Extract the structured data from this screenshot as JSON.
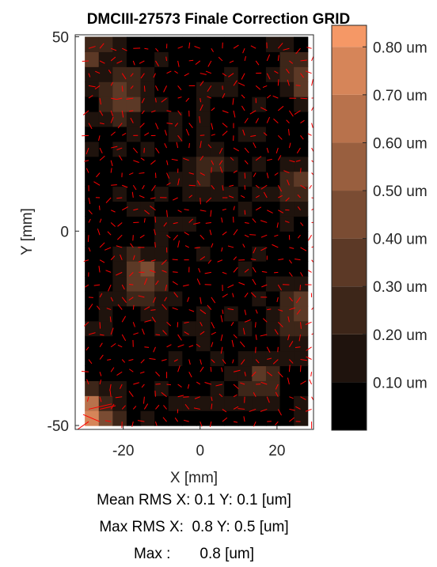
{
  "chart_data": {
    "type": "heatmap",
    "title": "DMCIII-27573 Finale Correction GRID",
    "xlabel": "X [mm]",
    "ylabel": "Y [mm]",
    "xlim": [
      -32.5,
      29.5
    ],
    "ylim": [
      -51,
      50.5
    ],
    "x_ticks": [
      -20,
      0,
      20
    ],
    "y_ticks": [
      -50,
      0,
      50
    ],
    "colorbar": {
      "levels": [
        0,
        0.1,
        0.2,
        0.3,
        0.4,
        0.5,
        0.6,
        0.7,
        0.8
      ],
      "tick_labels": [
        "0.10 um",
        "0.20 um",
        "0.30 um",
        "0.40 um",
        "0.50 um",
        "0.60 um",
        "0.70 um",
        "0.80 um"
      ],
      "colors": [
        "#000000",
        "#1f130d",
        "#3d2619",
        "#5c3926",
        "#7a4c33",
        "#995f3f",
        "#b8724c",
        "#d68559",
        "#f59866",
        "#ffc57f"
      ]
    },
    "hotspots": [
      {
        "x": -20,
        "y": 35,
        "value": 0.3
      },
      {
        "x": -15,
        "y": -12,
        "value": 0.35
      },
      {
        "x": 2,
        "y": 16,
        "value": 0.2
      },
      {
        "x": 27,
        "y": 40,
        "value": 0.3
      },
      {
        "x": 27,
        "y": 12,
        "value": 0.3
      },
      {
        "x": 27,
        "y": -20,
        "value": 0.35
      },
      {
        "x": -30,
        "y": -48,
        "value": 0.8
      },
      {
        "x": -28,
        "y": 48,
        "value": 0.25
      },
      {
        "x": 15,
        "y": -38,
        "value": 0.2
      }
    ],
    "vector_color": "#ff0000"
  },
  "stats": {
    "line1": "Mean RMS X: 0.1 Y: 0.1 [um]",
    "line2": "Max RMS X:  0.8 Y: 0.5 [um]",
    "line3": "Max :       0.8 [um]"
  }
}
